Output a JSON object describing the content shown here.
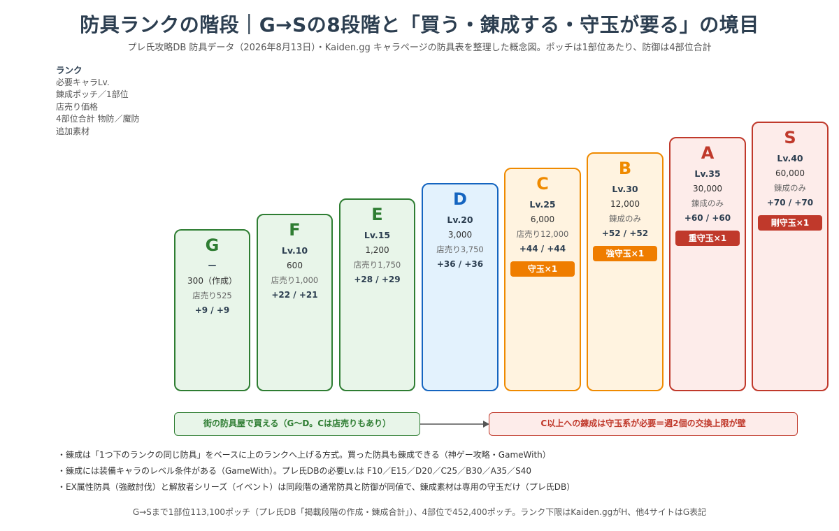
{
  "title": "防具ランクの階段｜G→Sの8段階と「買う・錬成する・守玉が要る」の境目",
  "subtitle": "プレ氏攻略DB 防具データ（2026年8月13日）・Kaiden.gg キャラページの防具表を整理した概念図。ポッチは1部位あたり、防御は4部位合計",
  "legend": {
    "heading": "ランク",
    "lines": [
      "必要キャラLv.",
      "錬成ポッチ／1部位",
      "店売り価格",
      "4部位合計 物防／魔防",
      "追加素材"
    ]
  },
  "ranks": [
    {
      "rank": "G",
      "lv": "ー",
      "cost": "300（作成）",
      "sell": "店売り525",
      "def": "+9 / +9",
      "mat": ""
    },
    {
      "rank": "F",
      "lv": "Lv.10",
      "cost": "600",
      "sell": "店売り1,000",
      "def": "+22 / +21",
      "mat": ""
    },
    {
      "rank": "E",
      "lv": "Lv.15",
      "cost": "1,200",
      "sell": "店売り1,750",
      "def": "+28 / +29",
      "mat": ""
    },
    {
      "rank": "D",
      "lv": "Lv.20",
      "cost": "3,000",
      "sell": "店売り3,750",
      "def": "+36 / +36",
      "mat": ""
    },
    {
      "rank": "C",
      "lv": "Lv.25",
      "cost": "6,000",
      "sell": "店売り12,000",
      "def": "+44 / +44",
      "mat": "守玉×1"
    },
    {
      "rank": "B",
      "lv": "Lv.30",
      "cost": "12,000",
      "sell": "錬成のみ",
      "def": "+52 / +52",
      "mat": "強守玉×1"
    },
    {
      "rank": "A",
      "lv": "Lv.35",
      "cost": "30,000",
      "sell": "錬成のみ",
      "def": "+60 / +60",
      "mat": "重守玉×1"
    },
    {
      "rank": "S",
      "lv": "Lv.40",
      "cost": "60,000",
      "sell": "錬成のみ",
      "def": "+70 / +70",
      "mat": "剛守玉×1"
    }
  ],
  "bands": {
    "left": "街の防具屋で買える（G〜D。Cは店売りもあり）",
    "right": "C以上への錬成は守玉系が必要＝週2個の交換上限が壁"
  },
  "notes": [
    "・錬成は「1つ下のランクの同じ防具」をベースに上のランクへ上げる方式。買った防具も錬成できる（神ゲー攻略・GameWith）",
    "・錬成には装備キャラのレベル条件がある（GameWith）。プレ氏DBの必要Lv.は F10／E15／D20／C25／B30／A35／S40",
    "・EX属性防具（強敵討伐）と解放者シリーズ（イベント）は同段階の通常防具と防御が同値で、錬成素材は専用の守玉だけ（プレ氏DB）"
  ],
  "footer": "G→Sまで1部位113,100ポッチ（プレ氏DB「掲載段階の作成・錬成合計」）、4部位で452,400ポッチ。ランク下限はKaiden.ggがH、他4サイトはG表記",
  "colors": {
    "green": "#2e7d32",
    "blue": "#1565c0",
    "orange": "#ef8a00",
    "red": "#c0392b"
  }
}
